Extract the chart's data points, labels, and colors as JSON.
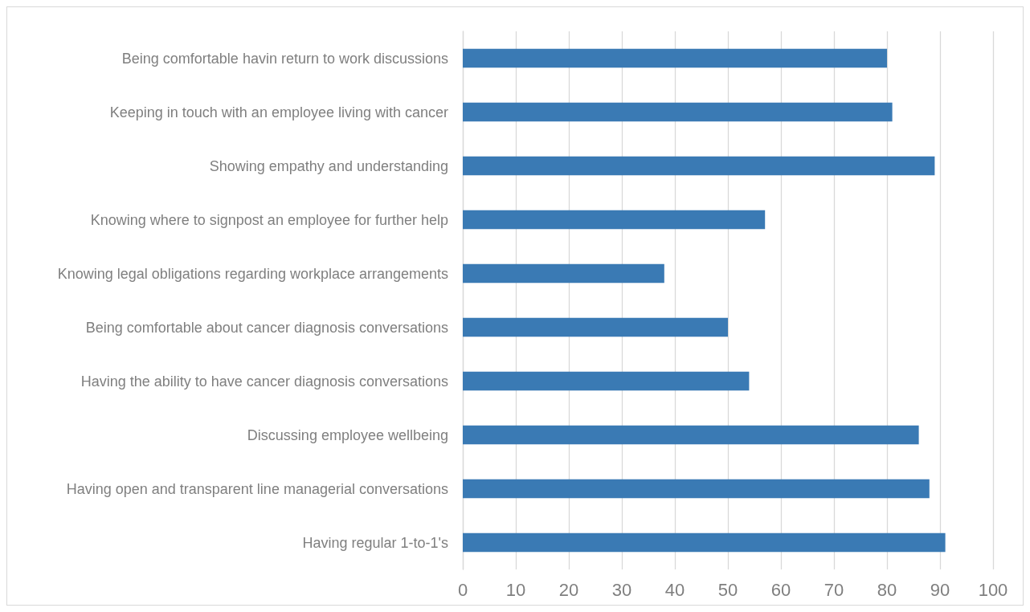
{
  "chart_data": {
    "type": "bar",
    "orientation": "horizontal",
    "categories": [
      "Being comfortable havin return to work discussions",
      "Keeping in touch with an employee living with cancer",
      "Showing empathy and understanding",
      "Knowing where to signpost an employee for further help",
      "Knowing legal obligations regarding workplace arrangements",
      "Being comfortable about cancer diagnosis conversations",
      "Having the ability to have cancer diagnosis conversations",
      "Discussing employee wellbeing",
      "Having open and transparent line managerial conversations",
      "Having regular 1-to-1's"
    ],
    "values": [
      80,
      81,
      89,
      57,
      38,
      50,
      54,
      86,
      88,
      91
    ],
    "color": "#3a7ab4",
    "xlim": [
      0,
      100
    ],
    "xticks": [
      0,
      10,
      20,
      30,
      40,
      50,
      60,
      70,
      80,
      90,
      100
    ],
    "grid": "x"
  }
}
